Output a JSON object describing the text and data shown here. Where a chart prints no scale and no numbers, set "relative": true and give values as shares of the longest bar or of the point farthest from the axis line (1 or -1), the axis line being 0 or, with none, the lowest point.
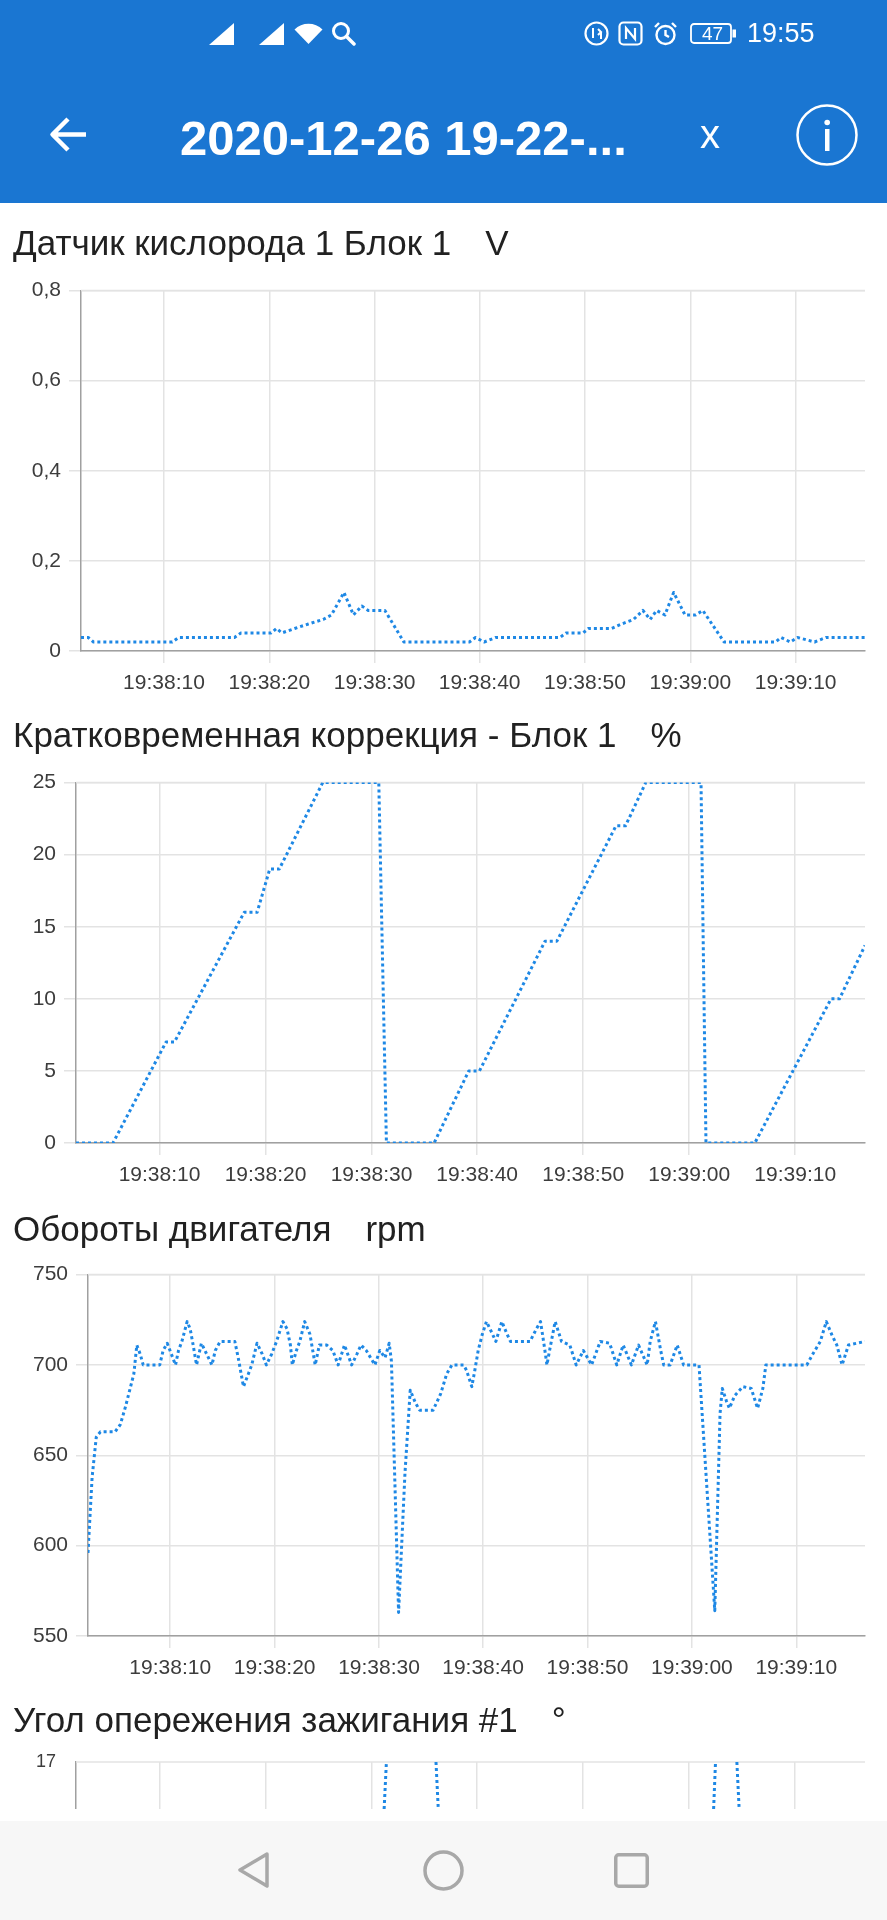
{
  "chart_data": [
    {
      "type": "other",
      "title": "2020-12-26 19-22-...",
      "annotations": [
        "19:55",
        "47",
        "x"
      ]
    },
    {
      "type": "line",
      "title": "Датчик кислорода 1 Блок 1",
      "ylabel": "V",
      "color": "#1e88e5",
      "line_style": "dotted",
      "grid": true,
      "x": [
        19.63392,
        19.63411,
        19.63425,
        19.63633,
        19.6365,
        19.63797,
        19.63814,
        19.63894,
        19.63908,
        19.63922,
        19.63956,
        19.63992,
        19.64031,
        19.64053,
        19.64086,
        19.64111,
        19.64133,
        19.6415,
        19.64194,
        19.64244,
        19.64417,
        19.64433,
        19.64456,
        19.64486,
        19.64656,
        19.64672,
        19.64717,
        19.64731,
        19.64792,
        19.64819,
        19.6485,
        19.64875,
        19.64894,
        19.64911,
        19.64933,
        19.64956,
        19.64986,
        19.65014,
        19.65033,
        19.65089,
        19.65225,
        19.65239,
        19.65264,
        19.65283,
        19.65328,
        19.65358,
        19.65461
      ],
      "values": [
        0.03,
        0.03,
        0.02,
        0.02,
        0.03,
        0.03,
        0.04,
        0.04,
        0.05,
        0.04,
        0.05,
        0.06,
        0.07,
        0.08,
        0.13,
        0.08,
        0.1,
        0.09,
        0.09,
        0.02,
        0.02,
        0.03,
        0.02,
        0.03,
        0.03,
        0.04,
        0.04,
        0.05,
        0.05,
        0.06,
        0.07,
        0.09,
        0.07,
        0.09,
        0.08,
        0.13,
        0.08,
        0.08,
        0.09,
        0.02,
        0.02,
        0.03,
        0.02,
        0.03,
        0.02,
        0.03,
        0.03
      ],
      "xlim": [
        19.63392,
        19.65461
      ],
      "xticks": [
        {
          "value": 19.63611,
          "label": "19:38:10"
        },
        {
          "value": 19.63889,
          "label": "19:38:20"
        },
        {
          "value": 19.64167,
          "label": "19:38:30"
        },
        {
          "value": 19.64444,
          "label": "19:38:40"
        },
        {
          "value": 19.64722,
          "label": "19:38:50"
        },
        {
          "value": 19.65,
          "label": "19:39:00"
        },
        {
          "value": 19.65278,
          "label": "19:39:10"
        }
      ],
      "ylim": [
        0,
        0.8
      ],
      "yticks": [
        0,
        {
          "value": 0.2,
          "label": "0,2"
        },
        {
          "value": 0.4,
          "label": "0,4"
        },
        {
          "value": 0.6,
          "label": "0,6"
        },
        {
          "value": 0.8,
          "label": "0,8"
        }
      ]
    },
    {
      "type": "line",
      "title": "Кратковременная коррекция - Блок 1",
      "ylabel": "%",
      "color": "#1e88e5",
      "line_style": "dotted",
      "grid": true,
      "x": [
        19.63392,
        19.63489,
        19.63628,
        19.6365,
        19.63833,
        19.63867,
        19.639,
        19.63925,
        19.64039,
        19.64186,
        19.64206,
        19.64331,
        19.64422,
        19.6445,
        19.64622,
        19.64653,
        19.64808,
        19.64833,
        19.64886,
        19.65031,
        19.65044,
        19.65172,
        19.65372,
        19.65394,
        19.65461
      ],
      "values": [
        0,
        0,
        7,
        7,
        16,
        16,
        19,
        19,
        25,
        25,
        0,
        0,
        5,
        5,
        14,
        14,
        22,
        22,
        25,
        25,
        0,
        0,
        10,
        10,
        13.7
      ],
      "xlim": [
        19.63392,
        19.65461
      ],
      "xticks": [
        {
          "value": 19.63611,
          "label": "19:38:10"
        },
        {
          "value": 19.63889,
          "label": "19:38:20"
        },
        {
          "value": 19.64167,
          "label": "19:38:30"
        },
        {
          "value": 19.64444,
          "label": "19:38:40"
        },
        {
          "value": 19.64722,
          "label": "19:38:50"
        },
        {
          "value": 19.65,
          "label": "19:39:00"
        },
        {
          "value": 19.65278,
          "label": "19:39:10"
        }
      ],
      "ylim": [
        0,
        25
      ],
      "yticks": [
        0,
        5,
        10,
        15,
        20,
        25
      ]
    },
    {
      "type": "line",
      "title": "Обороты двигателя",
      "ylabel": "rpm",
      "color": "#1e88e5",
      "line_style": "dotted",
      "grid": true,
      "x": [
        19.63392,
        19.63403,
        19.63414,
        19.63425,
        19.63464,
        19.63478,
        19.63492,
        19.63503,
        19.63514,
        19.63522,
        19.63531,
        19.63539,
        19.63583,
        19.63592,
        19.63603,
        19.63614,
        19.63625,
        19.63633,
        19.63642,
        19.63656,
        19.63664,
        19.63672,
        19.63681,
        19.63694,
        19.63708,
        19.63722,
        19.63731,
        19.63744,
        19.63783,
        19.63792,
        19.63806,
        19.63819,
        19.63828,
        19.63842,
        19.63856,
        19.63867,
        19.63881,
        19.63894,
        19.63911,
        19.63922,
        19.63931,
        19.63936,
        19.63947,
        19.63956,
        19.63969,
        19.63983,
        19.63997,
        19.64008,
        19.64028,
        19.64044,
        19.64058,
        19.64075,
        19.64094,
        19.64108,
        19.64119,
        19.64133,
        19.64156,
        19.64169,
        19.64183,
        19.64194,
        19.642,
        19.64219,
        19.64236,
        19.6425,
        19.64264,
        19.64275,
        19.64311,
        19.64331,
        19.64347,
        19.64361,
        19.64392,
        19.644,
        19.64414,
        19.64422,
        19.64431,
        19.64442,
        19.64453,
        19.64467,
        19.64478,
        19.64494,
        19.64508,
        19.64517,
        19.64569,
        19.64586,
        19.64597,
        19.64608,
        19.64614,
        19.64622,
        19.64636,
        19.64653,
        19.64675,
        19.64692,
        19.64711,
        19.64733,
        19.64756,
        19.64781,
        19.648,
        19.64817,
        19.64839,
        19.64858,
        19.64881,
        19.64889,
        19.64903,
        19.64917,
        19.64925,
        19.64942,
        19.64961,
        19.64978,
        19.65019,
        19.65061,
        19.65075,
        19.65081,
        19.65092,
        19.651,
        19.65114,
        19.65136,
        19.65158,
        19.65175,
        19.65189,
        19.65197,
        19.65306,
        19.65322,
        19.65342,
        19.65358,
        19.65372,
        19.65386,
        19.654,
        19.65417,
        19.65461
      ],
      "values": [
        596,
        638,
        660,
        663,
        663,
        667,
        677,
        686,
        695,
        711,
        706,
        700,
        700,
        708,
        712,
        706,
        700,
        708,
        713,
        724,
        720,
        711,
        700,
        712,
        706,
        700,
        708,
        713,
        713,
        704,
        688,
        695,
        700,
        712,
        706,
        700,
        706,
        713,
        724,
        720,
        711,
        700,
        708,
        713,
        724,
        717,
        700,
        711,
        711,
        708,
        700,
        711,
        700,
        706,
        711,
        708,
        700,
        708,
        704,
        712,
        702,
        563,
        640,
        686,
        679,
        675,
        675,
        684,
        695,
        700,
        700,
        697,
        688,
        697,
        708,
        717,
        724,
        718,
        713,
        724,
        717,
        713,
        713,
        720,
        724,
        709,
        700,
        709,
        724,
        713,
        711,
        700,
        708,
        700,
        713,
        712,
        700,
        711,
        700,
        711,
        700,
        713,
        724,
        708,
        700,
        700,
        711,
        700,
        700,
        564,
        673,
        687,
        680,
        676,
        683,
        688,
        687,
        676,
        687,
        700,
        700,
        706,
        713,
        724,
        717,
        711,
        700,
        711,
        713
      ],
      "xlim": [
        19.63392,
        19.65461
      ],
      "xticks": [
        {
          "value": 19.63611,
          "label": "19:38:10"
        },
        {
          "value": 19.63889,
          "label": "19:38:20"
        },
        {
          "value": 19.64167,
          "label": "19:38:30"
        },
        {
          "value": 19.64444,
          "label": "19:38:40"
        },
        {
          "value": 19.64722,
          "label": "19:38:50"
        },
        {
          "value": 19.65,
          "label": "19:39:00"
        },
        {
          "value": 19.65278,
          "label": "19:39:10"
        }
      ],
      "ylim": [
        550,
        750
      ],
      "yticks": [
        550,
        600,
        650,
        700,
        750
      ]
    },
    {
      "type": "line",
      "title": "Угол опережения зажигания #1",
      "ylabel": "°",
      "color": "#1e88e5",
      "line_style": "dotted",
      "grid": true,
      "tick_labels": false,
      "relative": true,
      "x": [
        19.642,
        19.64206,
        19.64272,
        19.64336,
        19.64342,
        19.64694,
        19.65064,
        19.65069,
        19.65097,
        19.65125,
        19.65131
      ],
      "values": [
        0,
        1,
        null,
        1,
        0,
        null,
        0,
        1,
        null,
        1,
        0
      ],
      "xlim": [
        19.63392,
        19.65461
      ],
      "xticks": [
        {
          "value": 19.63611,
          "label": null
        },
        {
          "value": 19.63889,
          "label": null
        },
        {
          "value": 19.64167,
          "label": null
        },
        {
          "value": 19.64444,
          "label": null
        },
        {
          "value": 19.64722,
          "label": null
        },
        {
          "value": 19.65,
          "label": null
        },
        {
          "value": 19.65278,
          "label": null
        }
      ],
      "annotations": [
        "17"
      ]
    }
  ]
}
